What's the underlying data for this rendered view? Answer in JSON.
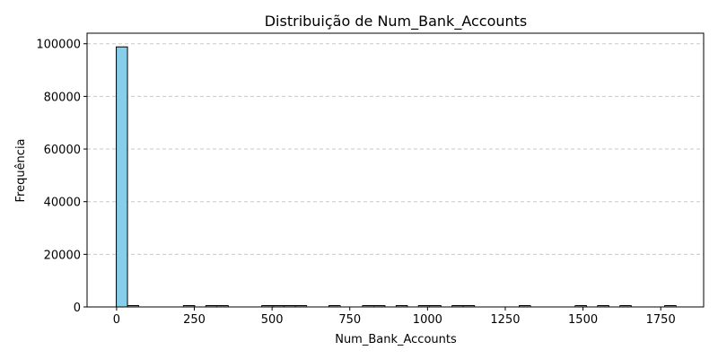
{
  "chart_data": {
    "type": "bar",
    "title": "Distribuição de Num_Bank_Accounts",
    "xlabel": "Num_Bank_Accounts",
    "ylabel": "Frequência",
    "xlim": [
      -95,
      1888
    ],
    "ylim": [
      0,
      104000
    ],
    "xticks": [
      0,
      250,
      500,
      750,
      1000,
      1250,
      1500,
      1750
    ],
    "yticks": [
      0,
      20000,
      40000,
      60000,
      80000,
      100000
    ],
    "bin_width": 36,
    "bins": [
      {
        "x0": -1,
        "x1": 35,
        "count": 98800
      },
      {
        "x0": 35,
        "x1": 71,
        "count": 300
      },
      {
        "x0": 215,
        "x1": 251,
        "count": 30
      },
      {
        "x0": 287,
        "x1": 323,
        "count": 30
      },
      {
        "x0": 323,
        "x1": 359,
        "count": 30
      },
      {
        "x0": 467,
        "x1": 503,
        "count": 30
      },
      {
        "x0": 503,
        "x1": 539,
        "count": 30
      },
      {
        "x0": 539,
        "x1": 575,
        "count": 30
      },
      {
        "x0": 575,
        "x1": 611,
        "count": 30
      },
      {
        "x0": 683,
        "x1": 719,
        "count": 30
      },
      {
        "x0": 791,
        "x1": 827,
        "count": 30
      },
      {
        "x0": 827,
        "x1": 863,
        "count": 30
      },
      {
        "x0": 899,
        "x1": 935,
        "count": 30
      },
      {
        "x0": 971,
        "x1": 1007,
        "count": 30
      },
      {
        "x0": 1007,
        "x1": 1043,
        "count": 30
      },
      {
        "x0": 1079,
        "x1": 1115,
        "count": 30
      },
      {
        "x0": 1115,
        "x1": 1151,
        "count": 30
      },
      {
        "x0": 1295,
        "x1": 1331,
        "count": 30
      },
      {
        "x0": 1475,
        "x1": 1511,
        "count": 30
      },
      {
        "x0": 1547,
        "x1": 1583,
        "count": 30
      },
      {
        "x0": 1619,
        "x1": 1655,
        "count": 30
      },
      {
        "x0": 1763,
        "x1": 1799,
        "count": 30
      }
    ],
    "grid": {
      "y": true,
      "x": false,
      "style": "dashed"
    },
    "colors": {
      "bar_fill": "#87ceeb",
      "bar_edge": "#000000",
      "grid": "#c8c8c8"
    }
  }
}
